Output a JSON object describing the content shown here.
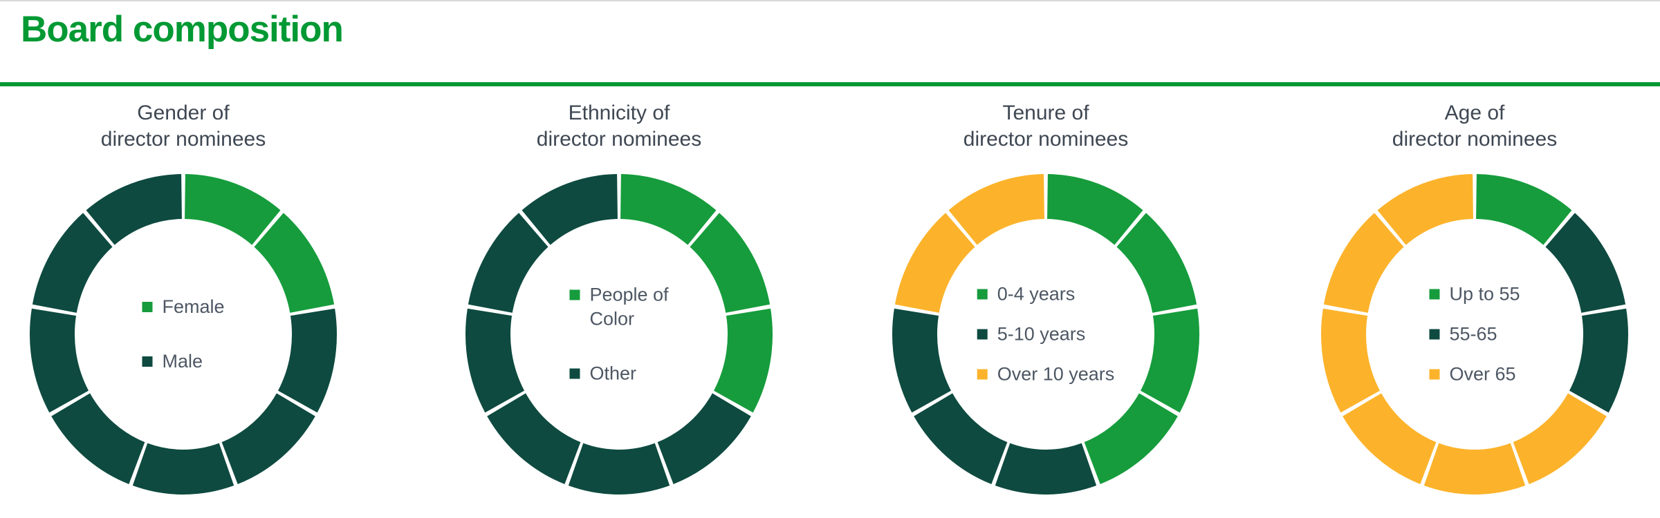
{
  "page": {
    "title": "Board composition"
  },
  "palette": {
    "green": "#169c3c",
    "dark_green": "#0e4a40",
    "amber": "#fcb32b",
    "heading_green": "#009933",
    "chart_title_text": "#3e4752",
    "legend_text": "#4d5763"
  },
  "chart_data": [
    {
      "id": "gender",
      "type": "donut",
      "title": "Gender of\ndirector nominees",
      "total_segments": 9,
      "segment_angle_deg": 40,
      "legend_position": "center",
      "series": [
        {
          "label": "Female",
          "color": "green",
          "count": 2
        },
        {
          "label": "Male",
          "color": "dark_green",
          "count": 7
        }
      ]
    },
    {
      "id": "ethnicity",
      "type": "donut",
      "title": "Ethnicity of\ndirector nominees",
      "total_segments": 9,
      "segment_angle_deg": 40,
      "legend_position": "center",
      "series": [
        {
          "label": "People of\nColor",
          "color": "green",
          "count": 3
        },
        {
          "label": "Other",
          "color": "dark_green",
          "count": 6
        }
      ]
    },
    {
      "id": "tenure",
      "type": "donut",
      "title": "Tenure of\ndirector nominees",
      "total_segments": 9,
      "segment_angle_deg": 40,
      "legend_position": "center",
      "series": [
        {
          "label": "0-4 years",
          "color": "green",
          "count": 4
        },
        {
          "label": "5-10 years",
          "color": "dark_green",
          "count": 3
        },
        {
          "label": "Over 10 years",
          "color": "amber",
          "count": 2
        }
      ]
    },
    {
      "id": "age",
      "type": "donut",
      "title": "Age of\ndirector nominees",
      "total_segments": 9,
      "segment_angle_deg": 40,
      "legend_position": "center",
      "series": [
        {
          "label": "Up to 55",
          "color": "green",
          "count": 1
        },
        {
          "label": "55-65",
          "color": "dark_green",
          "count": 2
        },
        {
          "label": "Over 65",
          "color": "amber",
          "count": 6
        }
      ]
    }
  ]
}
